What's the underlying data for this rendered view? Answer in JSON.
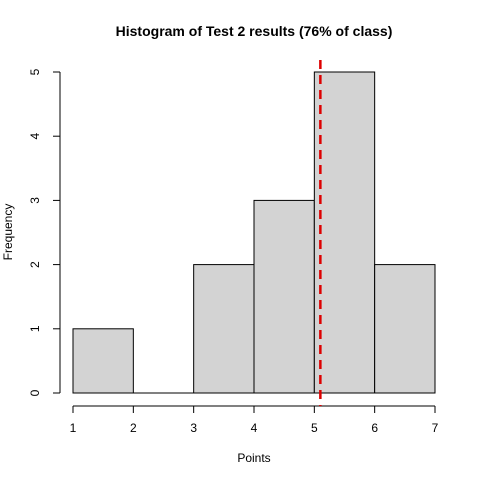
{
  "chart_data": {
    "type": "bar",
    "title": "Histogram of Test 2 results (76% of class)",
    "xlabel": "Points",
    "ylabel": "Frequency",
    "bins": [
      {
        "start": 1,
        "end": 2,
        "count": 1
      },
      {
        "start": 2,
        "end": 3,
        "count": 0
      },
      {
        "start": 3,
        "end": 4,
        "count": 2
      },
      {
        "start": 4,
        "end": 5,
        "count": 3
      },
      {
        "start": 5,
        "end": 6,
        "count": 5
      },
      {
        "start": 6,
        "end": 7,
        "count": 2
      }
    ],
    "xlim": [
      1,
      7
    ],
    "ylim": [
      0,
      5
    ],
    "x_ticks": [
      "1",
      "2",
      "3",
      "4",
      "5",
      "6",
      "7"
    ],
    "y_ticks": [
      "0",
      "1",
      "2",
      "3",
      "4",
      "5"
    ],
    "reference_line": {
      "x": 5.1,
      "color": "#dd0000",
      "style": "dashed"
    },
    "grid": false
  }
}
